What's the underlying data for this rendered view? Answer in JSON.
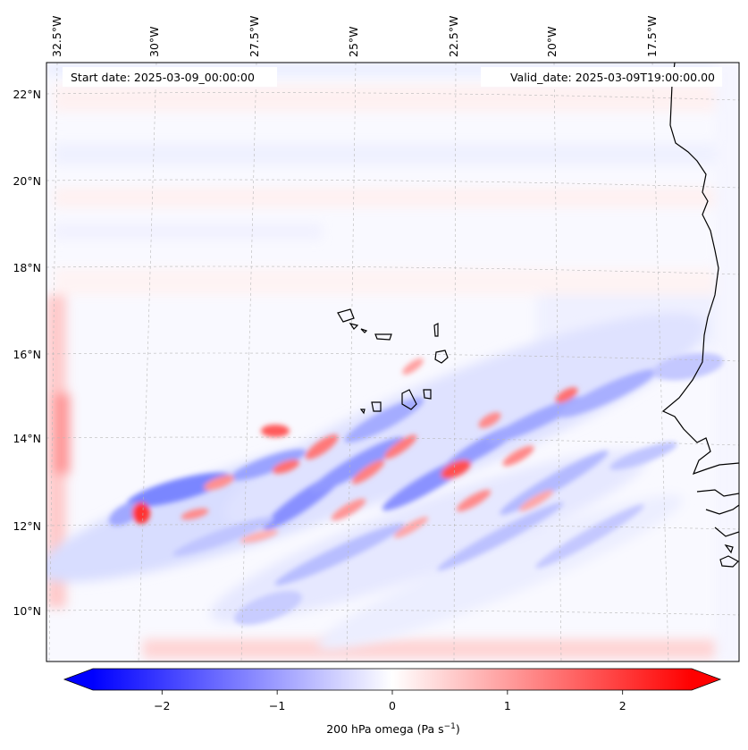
{
  "map": {
    "start_date_label": "Start date: 2025-03-09_00:00:00",
    "valid_date_label": "Valid_date: 2025-03-09T19:00:00.00",
    "lon_ticks": [
      "32.5°W",
      "30°W",
      "27.5°W",
      "25°W",
      "22.5°W",
      "20°W",
      "17.5°W"
    ],
    "lat_ticks": [
      "22°N",
      "20°N",
      "18°N",
      "16°N",
      "14°N",
      "12°N",
      "10°N"
    ],
    "colors": {
      "negative": "#0000ff",
      "zero": "#ffffff",
      "positive": "#ff0000",
      "coast": "#000000"
    }
  },
  "colorbar": {
    "label_main": "200 hPa omega (Pa s",
    "label_exp": "−1",
    "label_close": ")",
    "ticks": [
      "−2",
      "−1",
      "0",
      "1",
      "2"
    ],
    "range": [
      -2.6,
      2.6
    ]
  },
  "chart_data": {
    "type": "heatmap",
    "variable": "200 hPa omega (Pa s−1)",
    "xlabel": "",
    "ylabel": "",
    "x_ticks": [
      "32.5°W",
      "30°W",
      "27.5°W",
      "25°W",
      "22.5°W",
      "20°W",
      "17.5°W"
    ],
    "y_ticks": [
      "22°N",
      "20°N",
      "18°N",
      "16°N",
      "14°N",
      "12°N",
      "10°N"
    ],
    "color_range": [
      -2.6,
      2.6
    ],
    "colorbar_ticks": [
      -2,
      -1,
      0,
      1,
      2
    ],
    "lon_range": [
      -32.8,
      -15.3
    ],
    "lat_range": [
      8.9,
      22.7
    ],
    "features": [
      {
        "kind": "positive_band",
        "lon": -32.4,
        "lat": 14.3,
        "value": 1.6
      },
      {
        "kind": "positive_cell",
        "lon": -30.0,
        "lat": 12.3,
        "value": 2.2
      },
      {
        "kind": "negative_cell",
        "lon": -29.0,
        "lat": 12.6,
        "value": -1.8
      },
      {
        "kind": "positive_cell",
        "lon": -26.2,
        "lat": 14.2,
        "value": 1.8
      },
      {
        "kind": "positive_cell",
        "lon": -23.0,
        "lat": 13.8,
        "value": 1.7
      },
      {
        "kind": "positive_cell",
        "lon": -21.6,
        "lat": 13.1,
        "value": 1.9
      },
      {
        "kind": "negative_cell",
        "lon": -22.4,
        "lat": 12.8,
        "value": -1.5
      },
      {
        "kind": "positive_band",
        "lon": -24.0,
        "lat": 9.2,
        "value": 0.8
      }
    ]
  }
}
